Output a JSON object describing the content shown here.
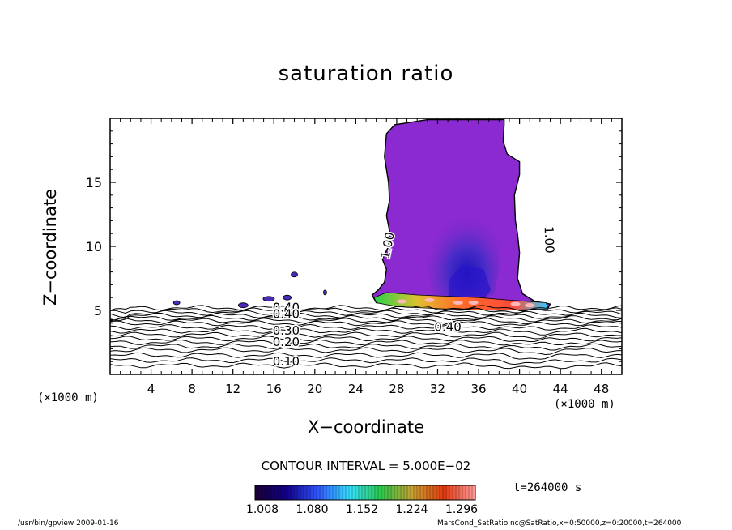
{
  "chart_data": {
    "type": "contour",
    "title": "saturation ratio",
    "xlabel": "X−coordinate",
    "ylabel": "Z−coordinate",
    "x_unit": "(×1000 m)",
    "xlim": [
      0,
      50
    ],
    "ylim": [
      0,
      20
    ],
    "x_ticks": [
      4,
      8,
      12,
      16,
      20,
      24,
      28,
      32,
      36,
      40,
      44,
      48
    ],
    "y_ticks": [
      5,
      10,
      15
    ],
    "contour_interval": "CONTOUR INTERVAL = 5.000E−02",
    "line_contour_labels": [
      {
        "text": "1.00",
        "x": 27.5,
        "z": 10.0
      },
      {
        "text": "1.00",
        "x": 42.5,
        "z": 10.5
      },
      {
        "text": "0.40",
        "x": 17.2,
        "z": 4.9
      },
      {
        "text": "0.40",
        "x": 17.2,
        "z": 4.4
      },
      {
        "text": "0.30",
        "x": 17.2,
        "z": 3.1
      },
      {
        "text": "0.20",
        "x": 17.2,
        "z": 2.2
      },
      {
        "text": "0.10",
        "x": 17.2,
        "z": 0.7
      },
      {
        "text": "0.40",
        "x": 33.0,
        "z": 3.4
      }
    ],
    "colorbar": {
      "labels": [
        "1.008",
        "1.080",
        "1.152",
        "1.224",
        "1.296"
      ],
      "colors": [
        "#1a0033",
        "#12008a",
        "#2f56ff",
        "#35e0ff",
        "#2ac84a",
        "#c8a030",
        "#e23a10",
        "#ff9a9a"
      ]
    },
    "time_label": "t=264000  s"
  },
  "footer": {
    "left": "/usr/bin/gpview   2009-01-16",
    "right": "MarsCond_SatRatio.nc@SatRatio,x=0:50000,z=0:20000,t=264000"
  }
}
